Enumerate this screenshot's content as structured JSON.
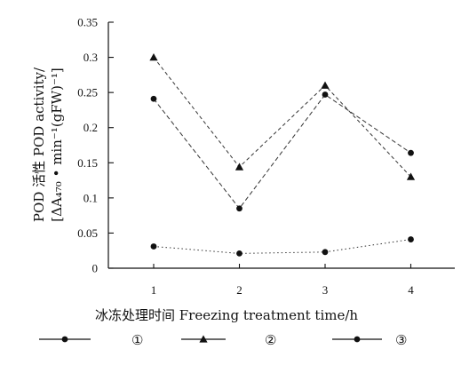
{
  "chart_data": {
    "type": "line",
    "x": [
      1,
      2,
      3,
      4
    ],
    "xticks": [
      "1",
      "2",
      "3",
      "4"
    ],
    "yticks": [
      "0",
      "0.05",
      "0.1",
      "0.15",
      "0.2",
      "0.25",
      "0.3",
      "0.35"
    ],
    "ylim": [
      0,
      0.35
    ],
    "ylabel_lines": [
      "POD 活性 POD activity/",
      "[ΔA₄₇₀ • min⁻¹(gFW)⁻¹]"
    ],
    "xlabel": "冰冻处理时间   Freezing treatment time/h",
    "legend_placement": "bottom",
    "series": [
      {
        "name": "①",
        "marker": "circle",
        "dash": "1.5,3",
        "values": [
          0.031,
          0.021,
          0.023,
          0.041
        ]
      },
      {
        "name": "②",
        "marker": "triangle",
        "dash": "4,3",
        "values": [
          0.3,
          0.144,
          0.26,
          0.13
        ]
      },
      {
        "name": "③",
        "marker": "circle",
        "dash": "5,3",
        "values": [
          0.241,
          0.085,
          0.247,
          0.164
        ]
      }
    ],
    "grid": false
  }
}
